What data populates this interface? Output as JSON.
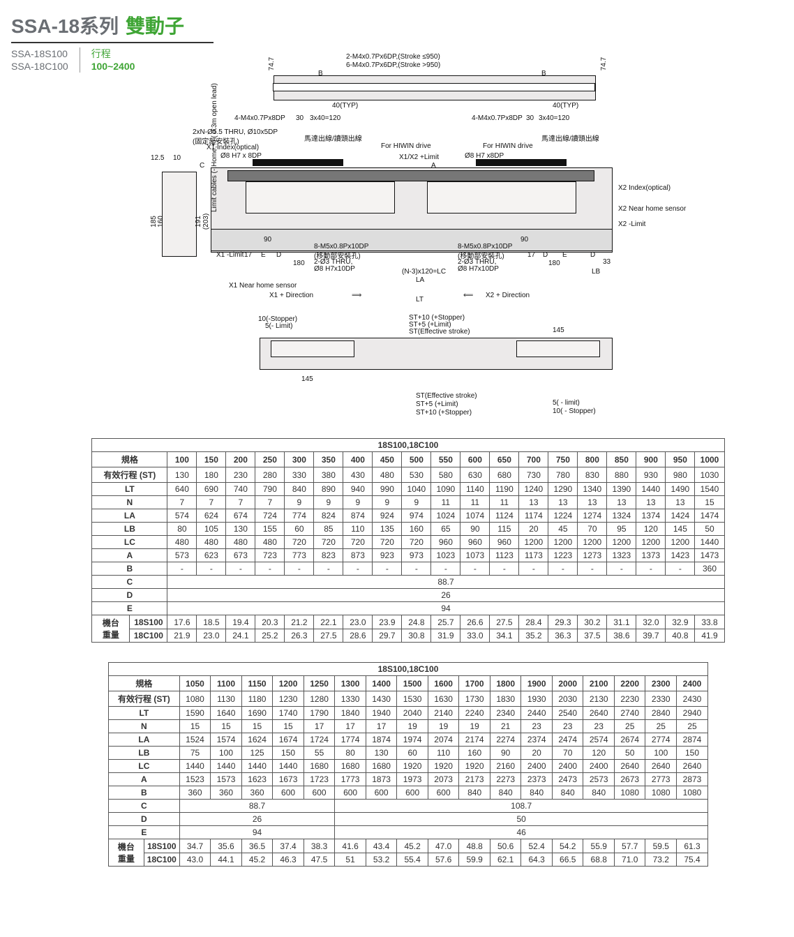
{
  "header": {
    "title_main": "SSA-18系列",
    "title_sub": "雙動子",
    "models": [
      "SSA-18S100",
      "SSA-18C100"
    ],
    "stroke_label": "行程",
    "stroke_range": "100~2400"
  },
  "diagram": {
    "annotations": {
      "top_note1": "2-M4x0.7Px6DP,(Stroke ≤950)",
      "top_note2": "6-M4x0.7Px6DP,(Stroke >950)",
      "b_label": "B",
      "forty": "40",
      "forty_typ": "40(TYP)",
      "seventy47": "74.7",
      "tap_4m4": "4-M4x0.7Px8DP",
      "thirty": "30",
      "x120": "3x40=120",
      "thru_note": "2xN-Ø5.5 THRU, Ø10x5DP",
      "fixmount": "(固定部安裝孔)",
      "x1_index": "X1 Index(optical)",
      "phi8_1": "Ø8 H7 x 8DP",
      "phi8_2": "Ø8 H7 x8DP",
      "motor_cable": "馬達出線/讀頭出線",
      "for_hiwin": "For HIWIN drive",
      "x1x2_limit": "X1/X2 +Limit",
      "A_label": "A",
      "x2_index": "X2 Index(optical)",
      "x2_near": "X2 Near home sensor",
      "x2_limit": "X2 -Limit",
      "x1_limit": "X1 -Limit",
      "x1_near": "X1 Near home sensor",
      "m5_note": "8-M5x0.8Px10DP",
      "movemount": "(移動部安裝孔)",
      "phi3_note": "2-Ø3 THRU,",
      "phi8h7_10": "Ø8 H7x10DP",
      "ninety": "90",
      "E_label": "E",
      "D_label": "D",
      "onehundredeighty": "180",
      "n3x120": "(N-3)x120=LC",
      "LA_label": "LA",
      "LB_label": "LB",
      "LT_label": "LT",
      "thirtythree": "33",
      "seventeen": "17",
      "x1dir": "X1 + Direction",
      "x2dir": "X2 + Direction",
      "arrow_r": "⟹",
      "arrow_l": "⟸",
      "one45": "145",
      "ten_stop": "10(-Stopper)",
      "five_lim": "5(- Limit)",
      "five_lim_n": "5( - limit)",
      "ten_stop_n": "10( - Stopper)",
      "st_plus10": "ST+10 (+Stopper)",
      "st_plus5": "ST+5 (+Limit)",
      "st_eff": "ST(Effective stroke)",
      "C_label": "C",
      "twelve5": "12.5",
      "ten": "10",
      "one85": "185",
      "one60": "160",
      "one91": "191",
      "two03": "(203)",
      "limit_cables": "Limit cables (-,Home,+)\n( 0.3m open lead)"
    }
  },
  "table1": {
    "caption": "18S100,18C100",
    "row_labels": {
      "spec": "規格",
      "st": "有效行程 (ST)",
      "lt": "LT",
      "n": "N",
      "la": "LA",
      "lb": "LB",
      "lc": "LC",
      "a": "A",
      "b": "B",
      "c": "C",
      "d": "D",
      "e": "E",
      "weight_group": "機台\n重量",
      "w1": "18S100",
      "w2": "18C100"
    },
    "cols": [
      "100",
      "150",
      "200",
      "250",
      "300",
      "350",
      "400",
      "450",
      "500",
      "550",
      "600",
      "650",
      "700",
      "750",
      "800",
      "850",
      "900",
      "950",
      "1000"
    ],
    "rows": {
      "st": [
        "130",
        "180",
        "230",
        "280",
        "330",
        "380",
        "430",
        "480",
        "530",
        "580",
        "630",
        "680",
        "730",
        "780",
        "830",
        "880",
        "930",
        "980",
        "1030"
      ],
      "lt": [
        "640",
        "690",
        "740",
        "790",
        "840",
        "890",
        "940",
        "990",
        "1040",
        "1090",
        "1140",
        "1190",
        "1240",
        "1290",
        "1340",
        "1390",
        "1440",
        "1490",
        "1540"
      ],
      "n": [
        "7",
        "7",
        "7",
        "7",
        "9",
        "9",
        "9",
        "9",
        "9",
        "11",
        "11",
        "11",
        "13",
        "13",
        "13",
        "13",
        "13",
        "13",
        "15"
      ],
      "la": [
        "574",
        "624",
        "674",
        "724",
        "774",
        "824",
        "874",
        "924",
        "974",
        "1024",
        "1074",
        "1124",
        "1174",
        "1224",
        "1274",
        "1324",
        "1374",
        "1424",
        "1474"
      ],
      "lb": [
        "80",
        "105",
        "130",
        "155",
        "60",
        "85",
        "110",
        "135",
        "160",
        "65",
        "90",
        "115",
        "20",
        "45",
        "70",
        "95",
        "120",
        "145",
        "50"
      ],
      "lc": [
        "480",
        "480",
        "480",
        "480",
        "720",
        "720",
        "720",
        "720",
        "720",
        "960",
        "960",
        "960",
        "1200",
        "1200",
        "1200",
        "1200",
        "1200",
        "1200",
        "1440"
      ],
      "a": [
        "573",
        "623",
        "673",
        "723",
        "773",
        "823",
        "873",
        "923",
        "973",
        "1023",
        "1073",
        "1123",
        "1173",
        "1223",
        "1273",
        "1323",
        "1373",
        "1423",
        "1473"
      ],
      "b": [
        "-",
        "-",
        "-",
        "-",
        "-",
        "-",
        "-",
        "-",
        "-",
        "-",
        "-",
        "-",
        "-",
        "-",
        "-",
        "-",
        "-",
        "-",
        "360"
      ],
      "c_span": "88.7",
      "d_span": "26",
      "e_span": "94",
      "w1": [
        "17.6",
        "18.5",
        "19.4",
        "20.3",
        "21.2",
        "22.1",
        "23.0",
        "23.9",
        "24.8",
        "25.7",
        "26.6",
        "27.5",
        "28.4",
        "29.3",
        "30.2",
        "31.1",
        "32.0",
        "32.9",
        "33.8"
      ],
      "w2": [
        "21.9",
        "23.0",
        "24.1",
        "25.2",
        "26.3",
        "27.5",
        "28.6",
        "29.7",
        "30.8",
        "31.9",
        "33.0",
        "34.1",
        "35.2",
        "36.3",
        "37.5",
        "38.6",
        "39.7",
        "40.8",
        "41.9"
      ]
    }
  },
  "table2": {
    "caption": "18S100,18C100",
    "row_labels": {
      "spec": "規格",
      "st": "有效行程 (ST)",
      "lt": "LT",
      "n": "N",
      "la": "LA",
      "lb": "LB",
      "lc": "LC",
      "a": "A",
      "b": "B",
      "c": "C",
      "d": "D",
      "e": "E",
      "weight_group": "機台\n重量",
      "w1": "18S100",
      "w2": "18C100"
    },
    "cols": [
      "1050",
      "1100",
      "1150",
      "1200",
      "1250",
      "1300",
      "1400",
      "1500",
      "1600",
      "1700",
      "1800",
      "1900",
      "2000",
      "2100",
      "2200",
      "2300",
      "2400"
    ],
    "rows": {
      "st": [
        "1080",
        "1130",
        "1180",
        "1230",
        "1280",
        "1330",
        "1430",
        "1530",
        "1630",
        "1730",
        "1830",
        "1930",
        "2030",
        "2130",
        "2230",
        "2330",
        "2430"
      ],
      "lt": [
        "1590",
        "1640",
        "1690",
        "1740",
        "1790",
        "1840",
        "1940",
        "2040",
        "2140",
        "2240",
        "2340",
        "2440",
        "2540",
        "2640",
        "2740",
        "2840",
        "2940"
      ],
      "n": [
        "15",
        "15",
        "15",
        "15",
        "17",
        "17",
        "17",
        "19",
        "19",
        "19",
        "21",
        "23",
        "23",
        "23",
        "25",
        "25",
        "25"
      ],
      "la": [
        "1524",
        "1574",
        "1624",
        "1674",
        "1724",
        "1774",
        "1874",
        "1974",
        "2074",
        "2174",
        "2274",
        "2374",
        "2474",
        "2574",
        "2674",
        "2774",
        "2874"
      ],
      "lb": [
        "75",
        "100",
        "125",
        "150",
        "55",
        "80",
        "130",
        "60",
        "110",
        "160",
        "90",
        "20",
        "70",
        "120",
        "50",
        "100",
        "150"
      ],
      "lc": [
        "1440",
        "1440",
        "1440",
        "1440",
        "1680",
        "1680",
        "1680",
        "1920",
        "1920",
        "1920",
        "2160",
        "2400",
        "2400",
        "2400",
        "2640",
        "2640",
        "2640"
      ],
      "a": [
        "1523",
        "1573",
        "1623",
        "1673",
        "1723",
        "1773",
        "1873",
        "1973",
        "2073",
        "2173",
        "2273",
        "2373",
        "2473",
        "2573",
        "2673",
        "2773",
        "2873"
      ],
      "b": [
        "360",
        "360",
        "360",
        "600",
        "600",
        "600",
        "600",
        "600",
        "600",
        "840",
        "840",
        "840",
        "840",
        "840",
        "1080",
        "1080",
        "1080"
      ],
      "c": {
        "span1": 5,
        "val1": "88.7",
        "span2": 12,
        "val2": "108.7"
      },
      "d": {
        "span1": 5,
        "val1": "26",
        "span2": 12,
        "val2": "50"
      },
      "e": {
        "span1": 5,
        "val1": "94",
        "span2": 12,
        "val2": "46"
      },
      "w1": [
        "34.7",
        "35.6",
        "36.5",
        "37.4",
        "38.3",
        "41.6",
        "43.4",
        "45.2",
        "47.0",
        "48.8",
        "50.6",
        "52.4",
        "54.2",
        "55.9",
        "57.7",
        "59.5",
        "61.3"
      ],
      "w2": [
        "43.0",
        "44.1",
        "45.2",
        "46.3",
        "47.5",
        "51",
        "53.2",
        "55.4",
        "57.6",
        "59.9",
        "62.1",
        "64.3",
        "66.5",
        "68.8",
        "71.0",
        "73.2",
        "75.4"
      ]
    }
  },
  "style": {
    "accent": "#3fa535",
    "text_gray": "#6a6e73",
    "border": "#555",
    "diagram_fill": "#eceaea"
  }
}
